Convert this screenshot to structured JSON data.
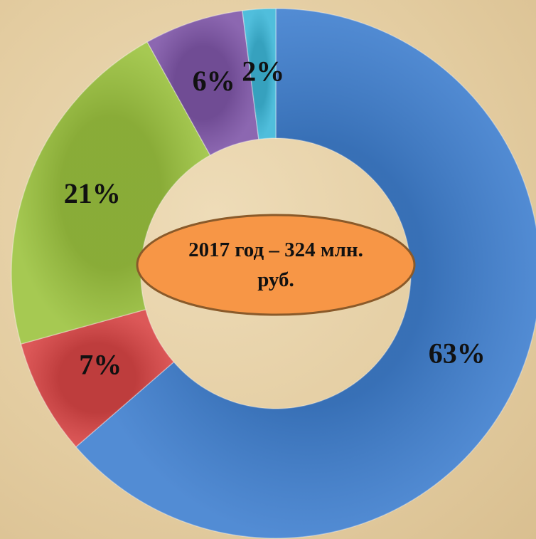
{
  "chart_data": {
    "type": "donut",
    "values": [
      63,
      7,
      21,
      6,
      2
    ],
    "value_labels": [
      "63%",
      "7%",
      "21%",
      "6%",
      "2%"
    ],
    "colors": [
      "#3f7fcf",
      "#d84545",
      "#9cc33f",
      "#7f56a8",
      "#3db7d8"
    ],
    "center_label": "2017 год – 324 млн. руб."
  }
}
